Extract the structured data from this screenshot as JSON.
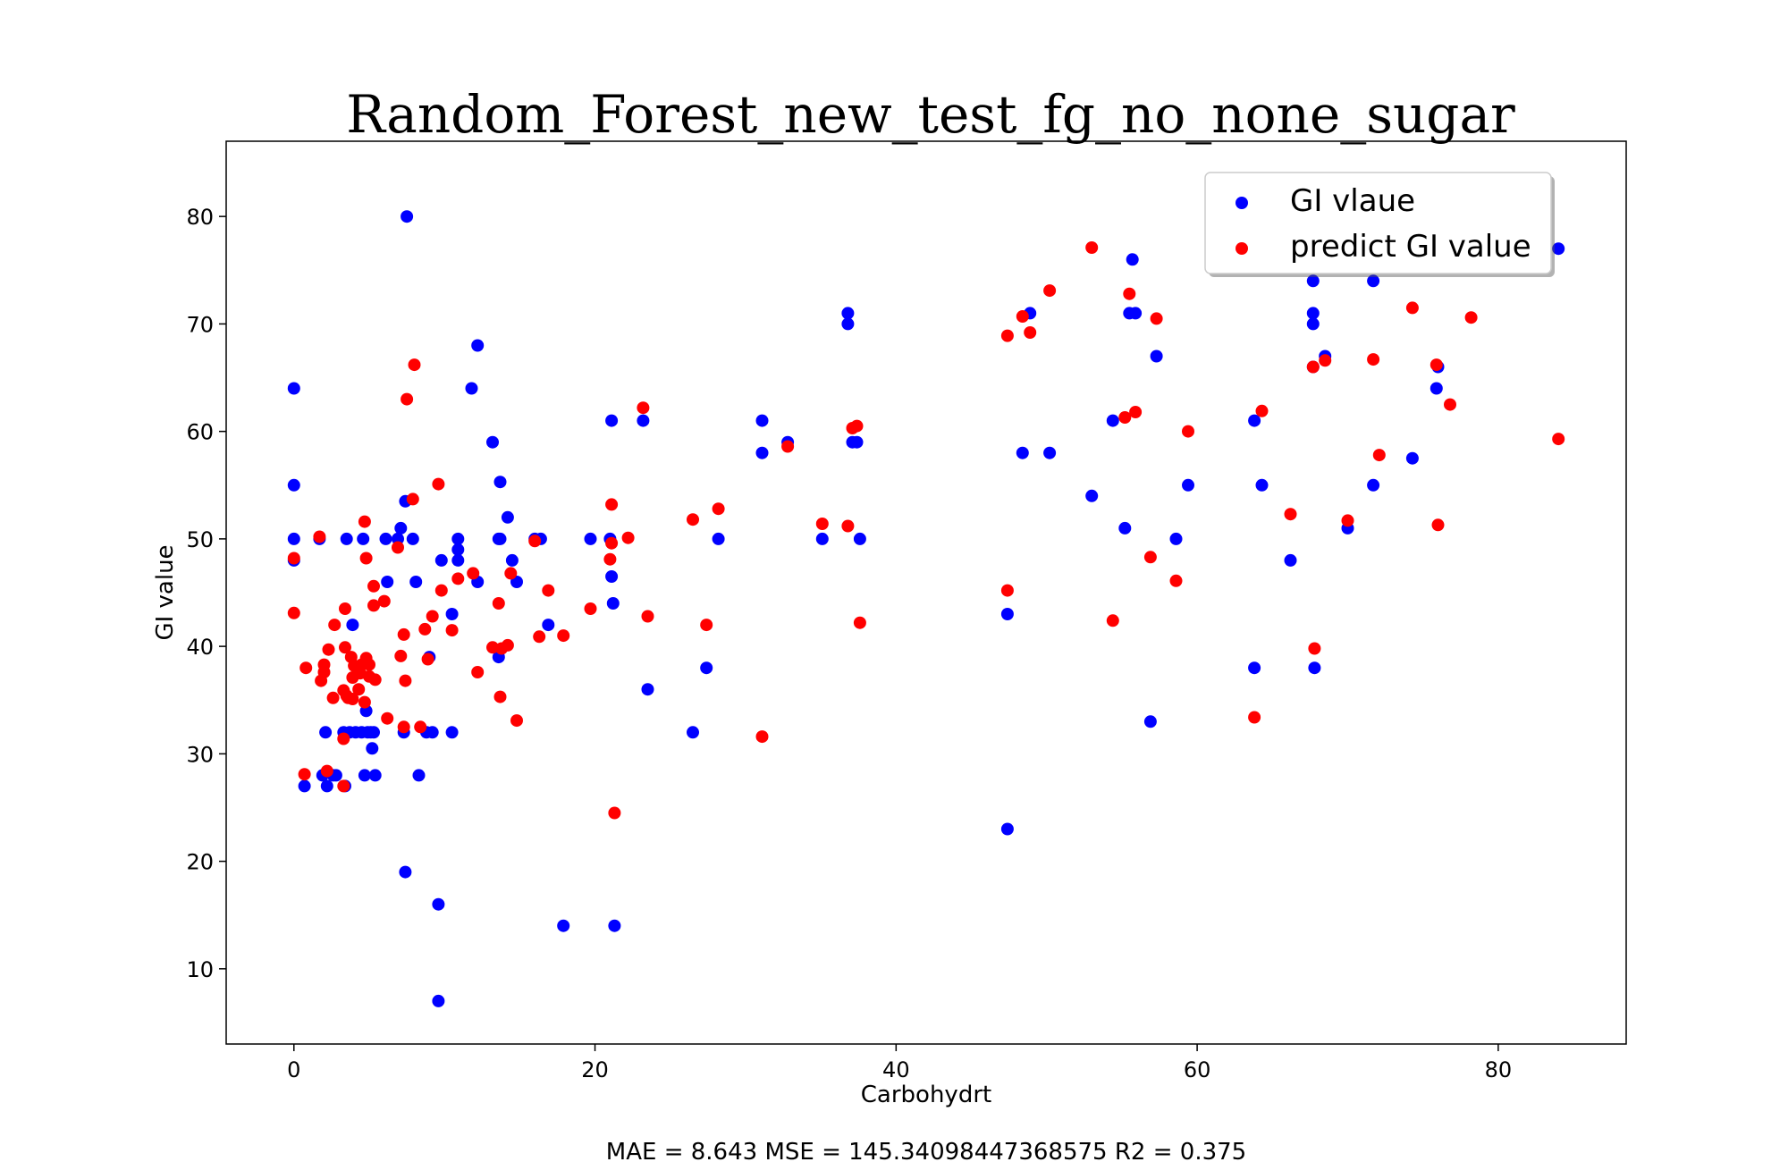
{
  "chart_data": {
    "type": "scatter",
    "title": "Random_Forest_new_test_fg_no_none_sugar",
    "xlabel": "Carbohydrt",
    "ylabel": "GI value",
    "xlim": [
      -4.5,
      88.5
    ],
    "ylim": [
      3,
      87
    ],
    "x_ticks": [
      0,
      20,
      40,
      60,
      80
    ],
    "y_ticks": [
      10,
      20,
      30,
      40,
      50,
      60,
      70,
      80
    ],
    "grid": false,
    "legend_position": "top-right",
    "metrics_text": "MAE = 8.643 MSE = 145.34098447368575 R2 = 0.375",
    "series": [
      {
        "name": "GI vlaue",
        "color": "#0000ff",
        "points": [
          [
            0.0,
            64
          ],
          [
            0.0,
            55
          ],
          [
            0.0,
            50
          ],
          [
            0.0,
            48
          ],
          [
            0.7,
            27
          ],
          [
            1.7,
            50
          ],
          [
            1.9,
            28
          ],
          [
            2.1,
            32
          ],
          [
            2.2,
            27
          ],
          [
            2.6,
            28
          ],
          [
            2.8,
            28
          ],
          [
            3.3,
            32
          ],
          [
            3.4,
            27
          ],
          [
            3.5,
            50
          ],
          [
            3.7,
            32
          ],
          [
            3.9,
            42
          ],
          [
            4.1,
            32
          ],
          [
            4.3,
            38
          ],
          [
            4.5,
            32
          ],
          [
            4.6,
            50
          ],
          [
            4.7,
            28
          ],
          [
            4.8,
            34
          ],
          [
            4.9,
            32
          ],
          [
            5.1,
            32
          ],
          [
            5.2,
            30.5
          ],
          [
            5.3,
            32
          ],
          [
            5.4,
            28
          ],
          [
            6.1,
            50
          ],
          [
            6.2,
            46
          ],
          [
            6.9,
            50
          ],
          [
            7.1,
            51
          ],
          [
            7.3,
            32
          ],
          [
            7.4,
            53.5
          ],
          [
            7.4,
            19
          ],
          [
            7.5,
            80
          ],
          [
            7.9,
            50
          ],
          [
            8.1,
            46
          ],
          [
            8.3,
            28
          ],
          [
            8.8,
            32
          ],
          [
            9.0,
            39
          ],
          [
            9.2,
            32
          ],
          [
            9.6,
            16
          ],
          [
            9.6,
            7
          ],
          [
            9.8,
            48
          ],
          [
            10.5,
            32
          ],
          [
            10.5,
            43
          ],
          [
            10.9,
            50
          ],
          [
            10.9,
            49
          ],
          [
            10.9,
            48
          ],
          [
            11.8,
            64
          ],
          [
            12.2,
            68
          ],
          [
            12.2,
            46
          ],
          [
            13.2,
            59
          ],
          [
            13.6,
            39
          ],
          [
            13.6,
            50
          ],
          [
            13.7,
            55.3
          ],
          [
            13.7,
            50
          ],
          [
            14.2,
            52
          ],
          [
            14.5,
            48
          ],
          [
            14.8,
            46
          ],
          [
            16.0,
            50
          ],
          [
            16.4,
            50
          ],
          [
            16.9,
            42
          ],
          [
            17.9,
            14
          ],
          [
            19.7,
            50
          ],
          [
            21.0,
            50
          ],
          [
            21.1,
            61
          ],
          [
            21.1,
            46.5
          ],
          [
            21.2,
            44
          ],
          [
            21.3,
            14
          ],
          [
            23.2,
            61
          ],
          [
            23.5,
            36
          ],
          [
            26.5,
            32
          ],
          [
            27.4,
            38
          ],
          [
            28.2,
            50
          ],
          [
            31.1,
            61
          ],
          [
            31.1,
            58
          ],
          [
            32.8,
            59
          ],
          [
            35.1,
            50
          ],
          [
            36.8,
            71
          ],
          [
            36.8,
            70
          ],
          [
            37.1,
            59
          ],
          [
            37.4,
            59
          ],
          [
            37.6,
            50
          ],
          [
            47.4,
            43
          ],
          [
            47.4,
            23
          ],
          [
            48.4,
            58
          ],
          [
            48.9,
            71
          ],
          [
            50.2,
            58
          ],
          [
            53.0,
            54
          ],
          [
            54.4,
            61
          ],
          [
            55.2,
            51
          ],
          [
            55.5,
            71
          ],
          [
            55.7,
            76
          ],
          [
            55.9,
            71
          ],
          [
            56.9,
            33
          ],
          [
            57.3,
            67
          ],
          [
            58.6,
            50
          ],
          [
            59.4,
            55
          ],
          [
            63.8,
            61
          ],
          [
            63.8,
            38
          ],
          [
            64.3,
            55
          ],
          [
            66.2,
            48
          ],
          [
            67.7,
            74
          ],
          [
            67.7,
            71
          ],
          [
            67.7,
            70
          ],
          [
            67.7,
            66
          ],
          [
            67.8,
            38
          ],
          [
            68.5,
            67
          ],
          [
            70.0,
            51
          ],
          [
            71.7,
            74
          ],
          [
            71.7,
            55
          ],
          [
            74.3,
            57.5
          ],
          [
            75.9,
            64
          ],
          [
            76.0,
            66
          ],
          [
            84.0,
            77
          ]
        ]
      },
      {
        "name": "predict GI value",
        "color": "#ff0000",
        "points": [
          [
            0.0,
            48.2
          ],
          [
            0.0,
            43.1
          ],
          [
            0.7,
            28.1
          ],
          [
            0.8,
            38
          ],
          [
            1.7,
            50.2
          ],
          [
            1.8,
            36.8
          ],
          [
            2.0,
            37.6
          ],
          [
            2.0,
            38.3
          ],
          [
            2.2,
            28.4
          ],
          [
            2.3,
            39.7
          ],
          [
            2.6,
            35.2
          ],
          [
            2.7,
            42
          ],
          [
            3.3,
            35.9
          ],
          [
            3.3,
            31.4
          ],
          [
            3.3,
            27
          ],
          [
            3.4,
            43.5
          ],
          [
            3.4,
            39.9
          ],
          [
            3.5,
            35.4
          ],
          [
            3.6,
            35.2
          ],
          [
            3.8,
            39
          ],
          [
            3.9,
            37.1
          ],
          [
            3.9,
            35.1
          ],
          [
            4.0,
            38.2
          ],
          [
            4.3,
            36
          ],
          [
            4.4,
            37.5
          ],
          [
            4.5,
            38.3
          ],
          [
            4.7,
            51.6
          ],
          [
            4.7,
            34.8
          ],
          [
            4.8,
            38.9
          ],
          [
            4.8,
            48.2
          ],
          [
            5.0,
            37.2
          ],
          [
            5.0,
            38.3
          ],
          [
            5.3,
            43.8
          ],
          [
            5.3,
            45.6
          ],
          [
            5.4,
            36.9
          ],
          [
            6.0,
            44.2
          ],
          [
            6.2,
            33.3
          ],
          [
            6.9,
            49.2
          ],
          [
            7.1,
            39.1
          ],
          [
            7.3,
            32.5
          ],
          [
            7.3,
            41.1
          ],
          [
            7.4,
            36.8
          ],
          [
            7.5,
            63
          ],
          [
            7.9,
            53.7
          ],
          [
            8.0,
            66.2
          ],
          [
            8.4,
            32.5
          ],
          [
            8.7,
            41.6
          ],
          [
            8.9,
            38.8
          ],
          [
            9.2,
            42.8
          ],
          [
            9.6,
            55.1
          ],
          [
            9.8,
            45.2
          ],
          [
            10.5,
            41.5
          ],
          [
            10.9,
            46.3
          ],
          [
            11.9,
            46.8
          ],
          [
            12.2,
            37.6
          ],
          [
            13.2,
            39.9
          ],
          [
            13.6,
            44
          ],
          [
            13.7,
            35.3
          ],
          [
            13.8,
            39.8
          ],
          [
            14.2,
            40.1
          ],
          [
            14.4,
            46.8
          ],
          [
            14.8,
            33.1
          ],
          [
            16.0,
            49.8
          ],
          [
            16.3,
            40.9
          ],
          [
            16.9,
            45.2
          ],
          [
            17.9,
            41
          ],
          [
            19.7,
            43.5
          ],
          [
            21.0,
            48.1
          ],
          [
            21.1,
            53.2
          ],
          [
            21.1,
            49.6
          ],
          [
            21.3,
            24.5
          ],
          [
            22.2,
            50.1
          ],
          [
            23.2,
            62.2
          ],
          [
            23.5,
            42.8
          ],
          [
            26.5,
            51.8
          ],
          [
            27.4,
            42
          ],
          [
            28.2,
            52.8
          ],
          [
            31.1,
            31.6
          ],
          [
            32.8,
            58.6
          ],
          [
            35.1,
            51.4
          ],
          [
            36.8,
            51.2
          ],
          [
            37.1,
            60.3
          ],
          [
            37.4,
            60.5
          ],
          [
            37.6,
            42.2
          ],
          [
            47.4,
            68.9
          ],
          [
            47.4,
            45.2
          ],
          [
            48.4,
            70.7
          ],
          [
            48.9,
            69.2
          ],
          [
            50.2,
            73.1
          ],
          [
            53.0,
            77.1
          ],
          [
            54.4,
            42.4
          ],
          [
            55.2,
            61.3
          ],
          [
            55.5,
            72.8
          ],
          [
            55.9,
            61.8
          ],
          [
            56.9,
            48.3
          ],
          [
            57.3,
            70.5
          ],
          [
            58.6,
            46.1
          ],
          [
            59.4,
            60
          ],
          [
            63.8,
            33.4
          ],
          [
            64.3,
            61.9
          ],
          [
            66.2,
            52.3
          ],
          [
            67.7,
            66
          ],
          [
            67.8,
            39.8
          ],
          [
            68.5,
            66.6
          ],
          [
            70.0,
            51.7
          ],
          [
            71.7,
            66.7
          ],
          [
            72.1,
            57.8
          ],
          [
            74.3,
            71.5
          ],
          [
            75.9,
            66.2
          ],
          [
            76.0,
            51.3
          ],
          [
            76.8,
            62.5
          ],
          [
            78.2,
            70.6
          ],
          [
            84.0,
            59.3
          ]
        ]
      }
    ]
  }
}
